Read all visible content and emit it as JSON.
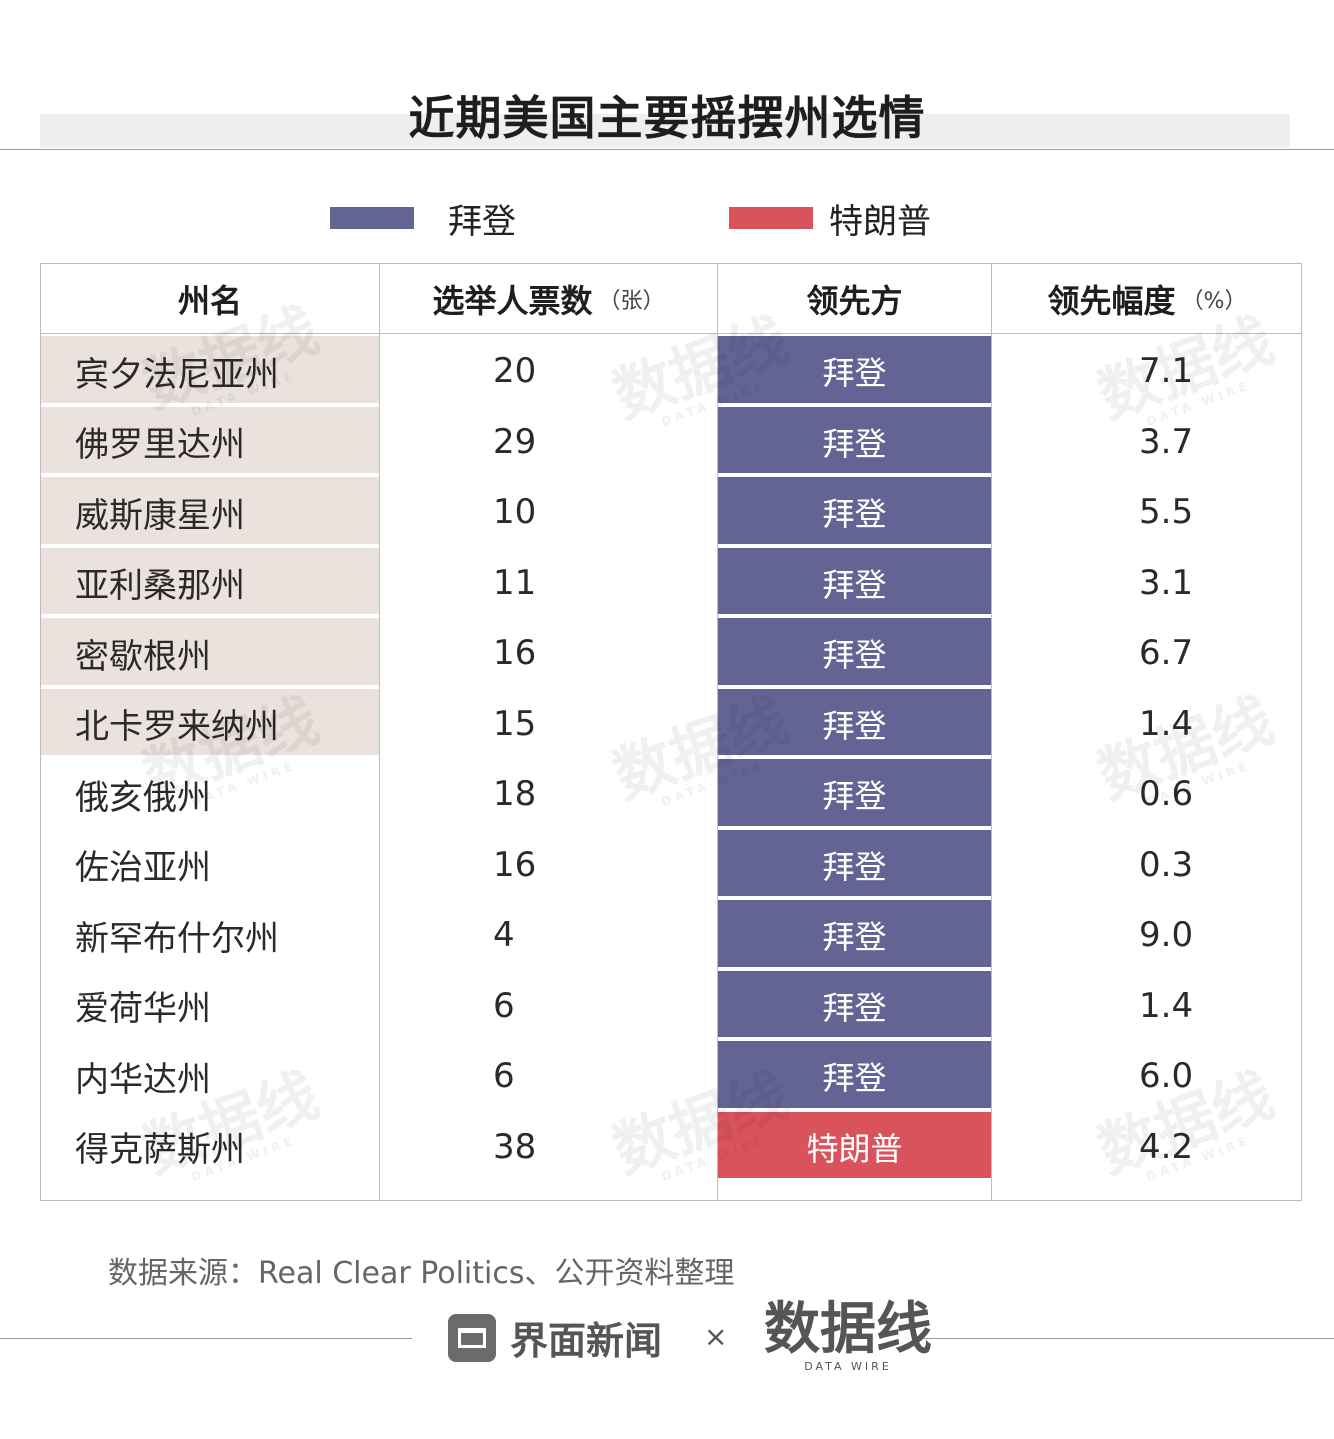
{
  "title": "近期美国主要摇摆州选情",
  "legend": [
    {
      "label": "拜登",
      "color": "#636493"
    },
    {
      "label": "特朗普",
      "color": "#d9535c"
    }
  ],
  "chart_data": {
    "type": "table",
    "columns": [
      {
        "label": "州名",
        "unit": ""
      },
      {
        "label": "选举人票数",
        "unit": "（张）"
      },
      {
        "label": "领先方",
        "unit": ""
      },
      {
        "label": "领先幅度",
        "unit": "（%）"
      }
    ],
    "rows": [
      {
        "state": "宾夕法尼亚州",
        "votes": "20",
        "leader": "拜登",
        "margin": "7.1",
        "highlight": true
      },
      {
        "state": "佛罗里达州",
        "votes": "29",
        "leader": "拜登",
        "margin": "3.7",
        "highlight": true
      },
      {
        "state": "威斯康星州",
        "votes": "10",
        "leader": "拜登",
        "margin": "5.5",
        "highlight": true
      },
      {
        "state": "亚利桑那州",
        "votes": "11",
        "leader": "拜登",
        "margin": "3.1",
        "highlight": true
      },
      {
        "state": "密歇根州",
        "votes": "16",
        "leader": "拜登",
        "margin": "6.7",
        "highlight": true
      },
      {
        "state": "北卡罗来纳州",
        "votes": "15",
        "leader": "拜登",
        "margin": "1.4",
        "highlight": true
      },
      {
        "state": "俄亥俄州",
        "votes": "18",
        "leader": "拜登",
        "margin": "0.6",
        "highlight": false
      },
      {
        "state": "佐治亚州",
        "votes": "16",
        "leader": "拜登",
        "margin": "0.3",
        "highlight": false
      },
      {
        "state": "新罕布什尔州",
        "votes": "4",
        "leader": "拜登",
        "margin": "9.0",
        "highlight": false
      },
      {
        "state": "爱荷华州",
        "votes": "6",
        "leader": "拜登",
        "margin": "1.4",
        "highlight": false
      },
      {
        "state": "内华达州",
        "votes": "6",
        "leader": "拜登",
        "margin": "6.0",
        "highlight": false
      },
      {
        "state": "得克萨斯州",
        "votes": "38",
        "leader": "特朗普",
        "margin": "4.2",
        "highlight": false
      }
    ]
  },
  "source": "数据来源：Real Clear Politics、公开资料整理",
  "footer": {
    "brand1": "界面新闻",
    "separator": "×",
    "brand2": "数据线",
    "brand2_sub": "DATA WIRE"
  },
  "watermark": {
    "text": "数据线",
    "sub": "DATA WIRE"
  }
}
